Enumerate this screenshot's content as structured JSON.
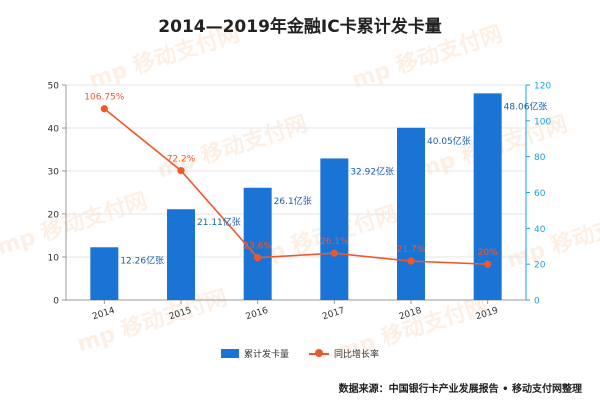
{
  "chart_data": {
    "type": "bar",
    "title": "2014—2019年金融IC卡累计发卡量",
    "categories": [
      "2014",
      "2015",
      "2016",
      "2017",
      "2018",
      "2019"
    ],
    "series": [
      {
        "name": "累计发卡量",
        "type": "bar",
        "axis": "left",
        "values": [
          12.26,
          21.11,
          26.1,
          32.92,
          40.05,
          48.06
        ],
        "labels": [
          "12.26亿张",
          "21.11亿张",
          "26.1亿张",
          "32.92亿张",
          "40.05亿张",
          "48.06亿张"
        ],
        "color": "#1a74d6"
      },
      {
        "name": "同比增长率",
        "type": "line",
        "axis": "right",
        "values": [
          106.75,
          72.2,
          23.6,
          26.1,
          21.7,
          20
        ],
        "labels": [
          "106.75%",
          "72.2%",
          "23.6%",
          "26.1%",
          "21.7%",
          "20%"
        ],
        "color": "#f0582a"
      }
    ],
    "y_left": {
      "range": [
        0,
        50
      ],
      "ticks": [
        0,
        10,
        20,
        30,
        40,
        50
      ]
    },
    "y_right": {
      "range": [
        0,
        120
      ],
      "ticks": [
        0,
        20,
        40,
        60,
        80,
        100,
        120
      ],
      "color": "#1aa3e0"
    },
    "grid": true,
    "legend": "bottom-center"
  },
  "source": "数据来源：中国银行卡产业发展报告 • 移动支付网整理",
  "watermark": "移动支付网"
}
